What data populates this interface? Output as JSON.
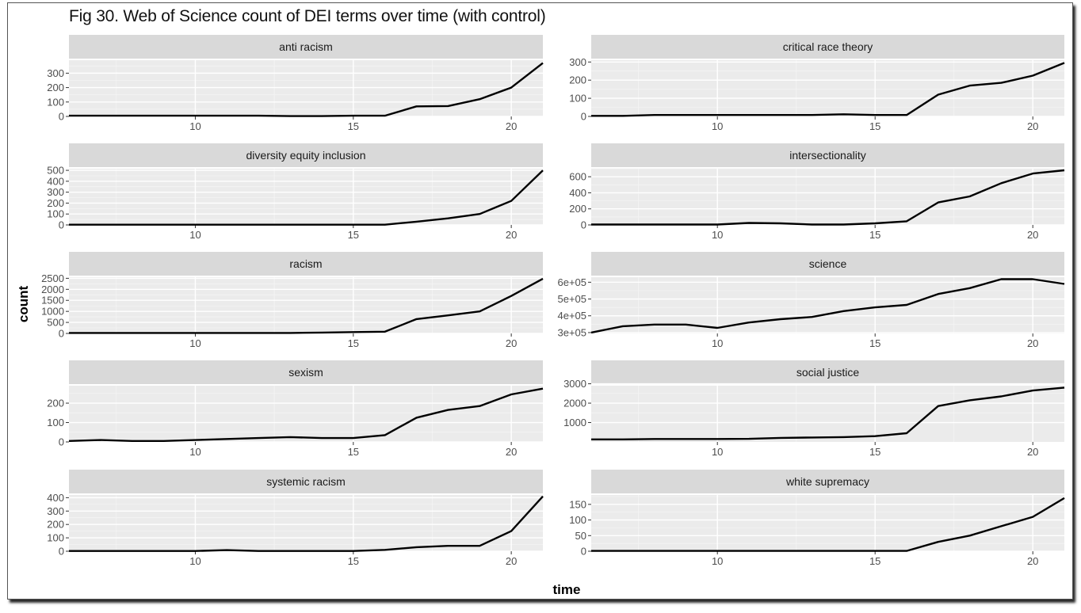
{
  "title": "Fig 30. Web of Science count of DEI terms over time (with control)",
  "chart_data": {
    "type": "line",
    "title": "Fig 30. Web of Science count of DEI terms over time (with control)",
    "xlabel": "time",
    "ylabel": "count",
    "xlim": [
      6,
      21
    ],
    "line_color": "#000000",
    "panel_background": "#ebebeb",
    "strip_background": "#d9d9d9",
    "grid": true,
    "panels": [
      {
        "name": "anti racism",
        "x": [
          6,
          7,
          8,
          9,
          10,
          11,
          12,
          13,
          14,
          15,
          16,
          17,
          18,
          19,
          20,
          21
        ],
        "values": [
          5,
          5,
          5,
          5,
          5,
          5,
          5,
          2,
          2,
          5,
          5,
          70,
          72,
          120,
          200,
          370
        ],
        "ylim": [
          0,
          390
        ],
        "yticks": [
          0,
          100,
          200,
          300
        ],
        "ytick_labels": [
          "0",
          "100",
          "200",
          "300"
        ],
        "xticks": [
          10,
          15,
          20
        ],
        "xtick_labels": [
          "10",
          "15",
          "20"
        ]
      },
      {
        "name": "critical race theory",
        "x": [
          6,
          7,
          8,
          9,
          10,
          11,
          12,
          13,
          14,
          15,
          16,
          17,
          18,
          19,
          20,
          21
        ],
        "values": [
          3,
          3,
          8,
          8,
          8,
          8,
          8,
          8,
          12,
          8,
          8,
          120,
          170,
          185,
          225,
          295
        ],
        "ylim": [
          0,
          310
        ],
        "yticks": [
          0,
          100,
          200,
          300
        ],
        "ytick_labels": [
          "0",
          "100",
          "200",
          "300"
        ],
        "xticks": [
          10,
          15,
          20
        ],
        "xtick_labels": [
          "10",
          "15",
          "20"
        ]
      },
      {
        "name": "diversity equity inclusion",
        "x": [
          6,
          7,
          8,
          9,
          10,
          11,
          12,
          13,
          14,
          15,
          16,
          17,
          18,
          19,
          20,
          21
        ],
        "values": [
          2,
          2,
          2,
          2,
          2,
          2,
          2,
          2,
          2,
          2,
          2,
          30,
          60,
          100,
          220,
          500
        ],
        "ylim": [
          0,
          515
        ],
        "yticks": [
          0,
          100,
          200,
          300,
          400,
          500
        ],
        "ytick_labels": [
          "0",
          "100",
          "200",
          "300",
          "400",
          "500"
        ],
        "xticks": [
          10,
          15,
          20
        ],
        "xtick_labels": [
          "10",
          "15",
          "20"
        ]
      },
      {
        "name": "intersectionality",
        "x": [
          6,
          7,
          8,
          9,
          10,
          11,
          12,
          13,
          14,
          15,
          16,
          17,
          18,
          19,
          20,
          21
        ],
        "values": [
          5,
          5,
          5,
          5,
          5,
          25,
          20,
          5,
          5,
          20,
          45,
          280,
          355,
          520,
          640,
          680
        ],
        "ylim": [
          0,
          700
        ],
        "yticks": [
          0,
          200,
          400,
          600
        ],
        "ytick_labels": [
          "0",
          "200",
          "400",
          "600"
        ],
        "xticks": [
          10,
          15,
          20
        ],
        "xtick_labels": [
          "10",
          "15",
          "20"
        ]
      },
      {
        "name": "racism",
        "x": [
          6,
          7,
          8,
          9,
          10,
          11,
          12,
          13,
          14,
          15,
          16,
          17,
          18,
          19,
          20,
          21
        ],
        "values": [
          20,
          20,
          20,
          20,
          20,
          20,
          20,
          20,
          40,
          60,
          80,
          650,
          820,
          1000,
          1700,
          2480
        ],
        "ylim": [
          0,
          2550
        ],
        "yticks": [
          0,
          500,
          1000,
          1500,
          2000,
          2500
        ],
        "ytick_labels": [
          "0",
          "500",
          "1000",
          "1500",
          "2000",
          "2500"
        ],
        "xticks": [
          10,
          15,
          20
        ],
        "xtick_labels": [
          "10",
          "15",
          "20"
        ]
      },
      {
        "name": "science",
        "x": [
          6,
          7,
          8,
          9,
          10,
          11,
          12,
          13,
          14,
          15,
          16,
          17,
          18,
          19,
          20,
          21
        ],
        "values": [
          300000,
          338000,
          348000,
          348000,
          328000,
          360000,
          380000,
          393000,
          428000,
          450000,
          465000,
          530000,
          565000,
          618000,
          618000,
          590000
        ],
        "ylim": [
          295000,
          630000
        ],
        "yticks": [
          300000,
          400000,
          500000,
          600000
        ],
        "ytick_labels": [
          "3e+05",
          "4e+05",
          "5e+05",
          "6e+05"
        ],
        "xticks": [
          10,
          15,
          20
        ],
        "xtick_labels": [
          "10",
          "15",
          "20"
        ]
      },
      {
        "name": "sexism",
        "x": [
          6,
          7,
          8,
          9,
          10,
          11,
          12,
          13,
          14,
          15,
          16,
          17,
          18,
          19,
          20,
          21
        ],
        "values": [
          5,
          10,
          5,
          5,
          10,
          15,
          20,
          25,
          20,
          20,
          35,
          125,
          165,
          185,
          245,
          275
        ],
        "ylim": [
          0,
          290
        ],
        "yticks": [
          0,
          100,
          200
        ],
        "ytick_labels": [
          "0",
          "100",
          "200"
        ],
        "xticks": [
          10,
          15,
          20
        ],
        "xtick_labels": [
          "10",
          "15",
          "20"
        ]
      },
      {
        "name": "social justice",
        "x": [
          6,
          7,
          8,
          9,
          10,
          11,
          12,
          13,
          14,
          15,
          16,
          17,
          18,
          19,
          20,
          21
        ],
        "values": [
          130,
          130,
          150,
          150,
          150,
          160,
          210,
          230,
          250,
          300,
          450,
          1850,
          2150,
          2350,
          2650,
          2800
        ],
        "ylim": [
          0,
          2900
        ],
        "yticks": [
          1000,
          2000,
          3000
        ],
        "ytick_labels": [
          "1000",
          "2000",
          "3000"
        ],
        "xticks": [
          10,
          15,
          20
        ],
        "xtick_labels": [
          "10",
          "15",
          "20"
        ]
      },
      {
        "name": "systemic racism",
        "x": [
          6,
          7,
          8,
          9,
          10,
          11,
          12,
          13,
          14,
          15,
          16,
          17,
          18,
          19,
          20,
          21
        ],
        "values": [
          2,
          2,
          2,
          2,
          2,
          8,
          2,
          2,
          2,
          2,
          10,
          30,
          40,
          40,
          150,
          410
        ],
        "ylim": [
          0,
          420
        ],
        "yticks": [
          0,
          100,
          200,
          300,
          400
        ],
        "ytick_labels": [
          "0",
          "100",
          "200",
          "300",
          "400"
        ],
        "xticks": [
          10,
          15,
          20
        ],
        "xtick_labels": [
          "10",
          "15",
          "20"
        ]
      },
      {
        "name": "white supremacy",
        "x": [
          6,
          7,
          8,
          9,
          10,
          11,
          12,
          13,
          14,
          15,
          16,
          17,
          18,
          19,
          20,
          21
        ],
        "values": [
          1,
          1,
          1,
          1,
          1,
          1,
          1,
          1,
          1,
          1,
          1,
          30,
          50,
          80,
          110,
          170
        ],
        "ylim": [
          0,
          180
        ],
        "yticks": [
          0,
          50,
          100,
          150
        ],
        "ytick_labels": [
          "0",
          "50",
          "100",
          "150"
        ],
        "xticks": [
          10,
          15,
          20
        ],
        "xtick_labels": [
          "10",
          "15",
          "20"
        ]
      }
    ]
  }
}
